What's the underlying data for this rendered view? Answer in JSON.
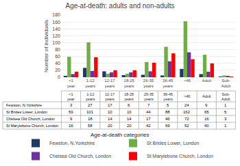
{
  "chart_data": {
    "type": "bar",
    "title": "Age-at-death: adults and non-adults",
    "xlabel": "Age-at-death categories",
    "ylabel": "Number of individuals",
    "categories": [
      "<1\nyear",
      "1-12\nyears",
      "12-17\nyears",
      "18-25\nyears",
      "26-35\nyears",
      "36-45\nyears",
      ">46",
      "Adult",
      "Sub-\nAdult"
    ],
    "series": [
      {
        "name": "Fewston, N.Yorkshire",
        "color": "#1f3864",
        "values": [
          3,
          27,
          17,
          6,
          7,
          5,
          24,
          9,
          1
        ]
      },
      {
        "name": "St Brides Lower, London",
        "color": "#70ad47",
        "values": [
          59,
          101,
          10,
          10,
          44,
          88,
          162,
          65,
          5
        ]
      },
      {
        "name": "Chelsea Old Church, London",
        "color": "#7030a0",
        "values": [
          9,
          18,
          14,
          14,
          17,
          46,
          72,
          16,
          3
        ]
      },
      {
        "name": "St Marylebone Church, London",
        "color": "#ff0000",
        "values": [
          16,
          58,
          20,
          20,
          42,
          69,
          52,
          40,
          1
        ]
      }
    ],
    "ylim": [
      0,
      180
    ],
    "yticks": [
      0,
      20,
      40,
      60,
      80,
      100,
      120,
      140,
      160,
      180
    ],
    "grid": true
  }
}
